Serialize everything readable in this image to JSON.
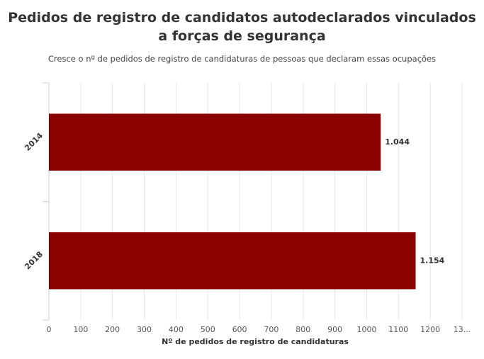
{
  "chart_data": {
    "type": "bar",
    "orientation": "horizontal",
    "title": "Pedidos de registro de candidatos autodeclarados vinculados a forças de segurança",
    "subtitle": "Cresce o nº de pedidos de registro de candidaturas de pessoas que declaram essas ocupações",
    "xlabel": "Nº de pedidos de registro de candidaturas",
    "categories": [
      "2014",
      "2018"
    ],
    "values": [
      1044,
      1154
    ],
    "value_labels": [
      "1.044",
      "1.154"
    ],
    "color": "#8b0000",
    "xlim": [
      0,
      1300
    ],
    "xticks": [
      0,
      100,
      200,
      300,
      400,
      500,
      600,
      700,
      800,
      900,
      1000,
      1100,
      1200,
      {
        "value": 1300,
        "label": "13..."
      }
    ],
    "grid": true
  }
}
